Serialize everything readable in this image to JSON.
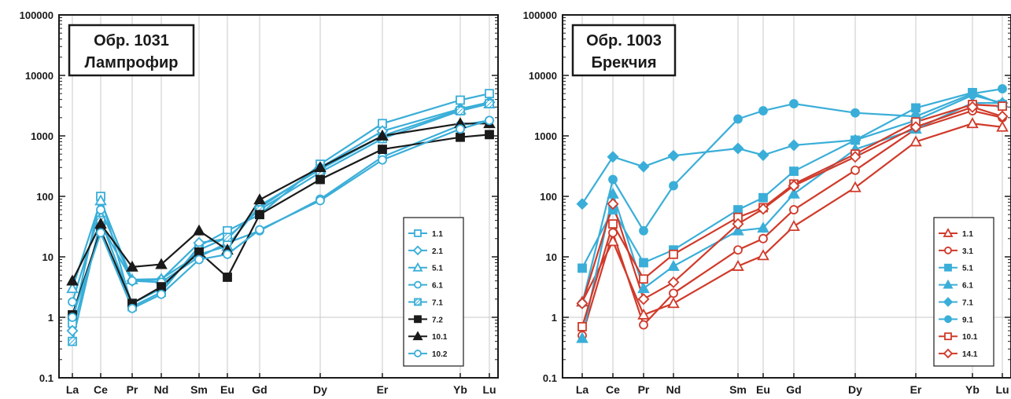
{
  "chart_data": [
    {
      "type": "line",
      "title": "Обр. 1031",
      "subtitle": "Лампрофир",
      "y_scale": "log",
      "ylim": [
        0.1,
        100000
      ],
      "y_ticks": [
        "0.1",
        "1",
        "10",
        "100",
        "1000",
        "10000",
        "100000"
      ],
      "categories": [
        "La",
        "Ce",
        "Pr",
        "Nd",
        "Sm",
        "Eu",
        "Gd",
        "Dy",
        "Er",
        "Yb",
        "Lu"
      ],
      "grid": true,
      "legend_position": "bottom-right",
      "series": [
        {
          "name": "1.1",
          "color": "#3aaed8",
          "marker": "square-open",
          "values": [
            0.8,
            100,
            1.5,
            2.6,
            15,
            27,
            50,
            340,
            1600,
            3900,
            5000
          ]
        },
        {
          "name": "2.1",
          "color": "#3aaed8",
          "marker": "diamond-open",
          "values": [
            0.6,
            35,
            4.0,
            4.2,
            17,
            20,
            65,
            300,
            1200,
            2800,
            3600
          ]
        },
        {
          "name": "5.1",
          "color": "#3aaed8",
          "marker": "triangle-open",
          "values": [
            3.0,
            85,
            4.2,
            4.3,
            11,
            15,
            70,
            280,
            1000,
            2700,
            3400
          ]
        },
        {
          "name": "6.1",
          "color": "#3aaed8",
          "marker": "circle-open",
          "values": [
            1.8,
            60,
            4.0,
            3.8,
            10,
            17,
            27,
            90,
            450,
            1500,
            1800
          ]
        },
        {
          "name": "7.1",
          "color": "#3aaed8",
          "marker": "square-hatched",
          "values": [
            0.4,
            40,
            1.7,
            3.0,
            13,
            21,
            60,
            250,
            900,
            2600,
            3400
          ]
        },
        {
          "name": "7.2",
          "color": "#1a1a1a",
          "marker": "square-filled",
          "values": [
            1.1,
            28,
            1.7,
            3.2,
            12,
            4.6,
            50,
            190,
            600,
            950,
            1050
          ]
        },
        {
          "name": "10.1",
          "color": "#1a1a1a",
          "marker": "triangle-filled",
          "values": [
            4.0,
            35,
            6.8,
            7.5,
            27,
            13,
            88,
            300,
            1000,
            1600,
            1600
          ]
        },
        {
          "name": "10.2",
          "color": "#3aaed8",
          "marker": "circle-open",
          "values": [
            1.0,
            25,
            1.4,
            2.4,
            9,
            11,
            28,
            85,
            400,
            1300,
            1800
          ]
        }
      ]
    },
    {
      "type": "line",
      "title": "Обр. 1003",
      "subtitle": "Брекчия",
      "y_scale": "log",
      "ylim": [
        0.1,
        100000
      ],
      "y_ticks": [
        "0.1",
        "1",
        "10",
        "100",
        "1000",
        "10000",
        "100000"
      ],
      "categories": [
        "La",
        "Ce",
        "Pr",
        "Nd",
        "Sm",
        "Eu",
        "Gd",
        "Dy",
        "Er",
        "Yb",
        "Lu"
      ],
      "grid": true,
      "legend_position": "bottom-right",
      "series": [
        {
          "name": "1.1",
          "color": "#d03a2a",
          "marker": "triangle-open",
          "values": [
            1.8,
            18,
            1.1,
            1.7,
            7,
            10.5,
            32,
            140,
            800,
            1600,
            1400
          ]
        },
        {
          "name": "3.1",
          "color": "#d03a2a",
          "marker": "circle-open",
          "values": [
            0.5,
            25,
            0.75,
            2.5,
            13,
            20,
            60,
            270,
            1300,
            2600,
            2000
          ]
        },
        {
          "name": "5.1",
          "color": "#3aaed8",
          "marker": "square-filled",
          "values": [
            6.5,
            60,
            8.0,
            13,
            60,
            95,
            260,
            850,
            2900,
            5200,
            3300
          ]
        },
        {
          "name": "6.1",
          "color": "#3aaed8",
          "marker": "triangle-filled",
          "values": [
            0.45,
            110,
            3.0,
            7,
            27,
            30,
            110,
            600,
            1300,
            3500,
            3500
          ]
        },
        {
          "name": "7.1",
          "color": "#3aaed8",
          "marker": "diamond-filled",
          "values": [
            75,
            450,
            310,
            470,
            620,
            480,
            700,
            850,
            1800,
            4700,
            3500
          ]
        },
        {
          "name": "9.1",
          "color": "#3aaed8",
          "marker": "circle-filled",
          "values": [
            1.7,
            190,
            27,
            150,
            1900,
            2600,
            3400,
            2400,
            2100,
            5000,
            6000
          ]
        },
        {
          "name": "10.1",
          "color": "#d03a2a",
          "marker": "square-open",
          "values": [
            0.7,
            35,
            4.3,
            11,
            45,
            65,
            160,
            500,
            1700,
            3300,
            3100
          ]
        },
        {
          "name": "14.1",
          "color": "#d03a2a",
          "marker": "diamond-open",
          "values": [
            1.7,
            75,
            2.0,
            3.8,
            35,
            62,
            150,
            450,
            1400,
            3000,
            2100
          ]
        }
      ]
    }
  ]
}
